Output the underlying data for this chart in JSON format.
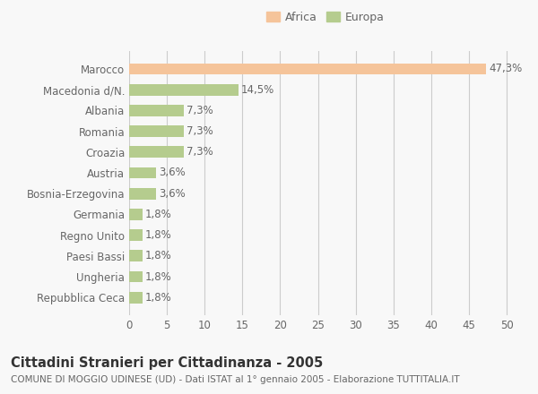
{
  "categories": [
    "Repubblica Ceca",
    "Ungheria",
    "Paesi Bassi",
    "Regno Unito",
    "Germania",
    "Bosnia-Erzegovina",
    "Austria",
    "Croazia",
    "Romania",
    "Albania",
    "Macedonia d/N.",
    "Marocco"
  ],
  "values": [
    1.8,
    1.8,
    1.8,
    1.8,
    1.8,
    3.6,
    3.6,
    7.3,
    7.3,
    7.3,
    14.5,
    47.3
  ],
  "labels": [
    "1,8%",
    "1,8%",
    "1,8%",
    "1,8%",
    "1,8%",
    "3,6%",
    "3,6%",
    "7,3%",
    "7,3%",
    "7,3%",
    "14,5%",
    "47,3%"
  ],
  "colors": [
    "#b5cc8e",
    "#b5cc8e",
    "#b5cc8e",
    "#b5cc8e",
    "#b5cc8e",
    "#b5cc8e",
    "#b5cc8e",
    "#b5cc8e",
    "#b5cc8e",
    "#b5cc8e",
    "#b5cc8e",
    "#f5c49a"
  ],
  "legend_items": [
    {
      "label": "Africa",
      "color": "#f5c49a"
    },
    {
      "label": "Europa",
      "color": "#b5cc8e"
    }
  ],
  "xlim": [
    0,
    52
  ],
  "xticks": [
    0,
    5,
    10,
    15,
    20,
    25,
    30,
    35,
    40,
    45,
    50
  ],
  "title": "Cittadini Stranieri per Cittadinanza - 2005",
  "subtitle": "COMUNE DI MOGGIO UDINESE (UD) - Dati ISTAT al 1° gennaio 2005 - Elaborazione TUTTITALIA.IT",
  "bg_color": "#f8f8f8",
  "plot_bg_color": "#f8f8f8",
  "grid_color": "#cccccc",
  "bar_height": 0.55,
  "label_fontsize": 8.5,
  "tick_fontsize": 8.5,
  "ytick_fontsize": 8.5,
  "title_fontsize": 10.5,
  "subtitle_fontsize": 7.5,
  "text_color": "#666666"
}
